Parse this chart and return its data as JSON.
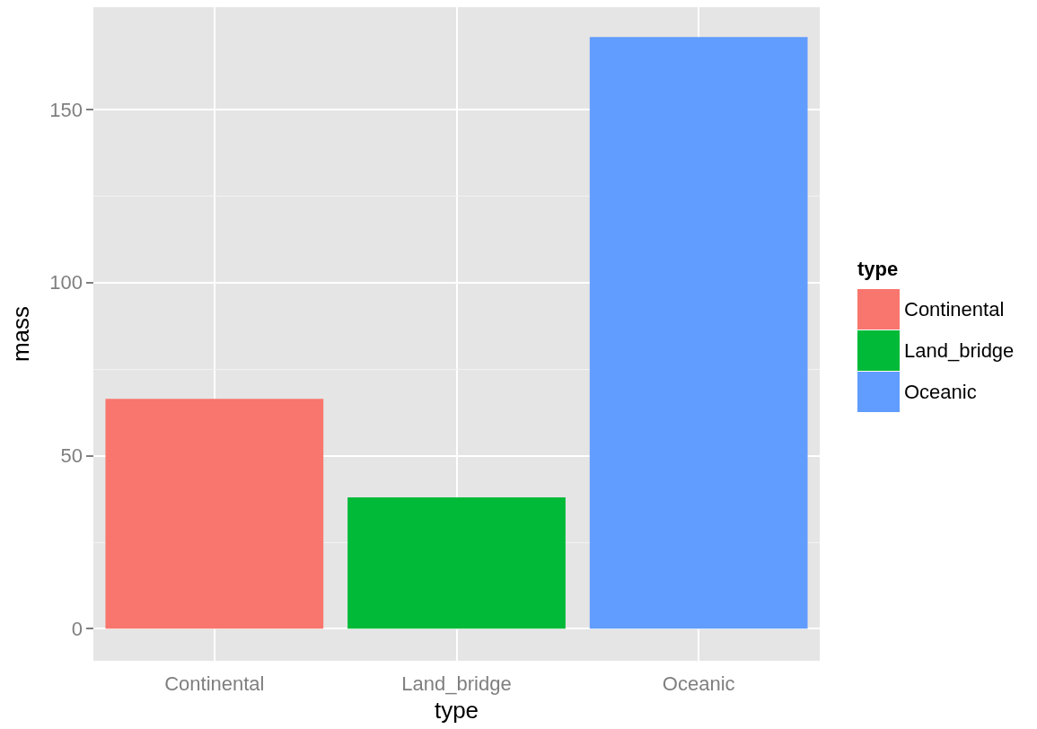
{
  "chart_data": {
    "type": "bar",
    "xlabel": "type",
    "ylabel": "mass",
    "legend_title": "type",
    "categories": [
      "Continental",
      "Land_bridge",
      "Oceanic"
    ],
    "series": [
      {
        "name": "Continental",
        "color": "#f8766d",
        "values": [
          66.4,
          null,
          null
        ]
      },
      {
        "name": "Land_bridge",
        "color": "#00ba38",
        "values": [
          null,
          37.9,
          null
        ]
      },
      {
        "name": "Oceanic",
        "color": "#619cff",
        "values": [
          null,
          null,
          171.0
        ]
      }
    ],
    "ylim": [
      -9.3,
      179.6
    ],
    "yticks": [
      0,
      50,
      100,
      150
    ],
    "grid": true,
    "legend": "right"
  }
}
